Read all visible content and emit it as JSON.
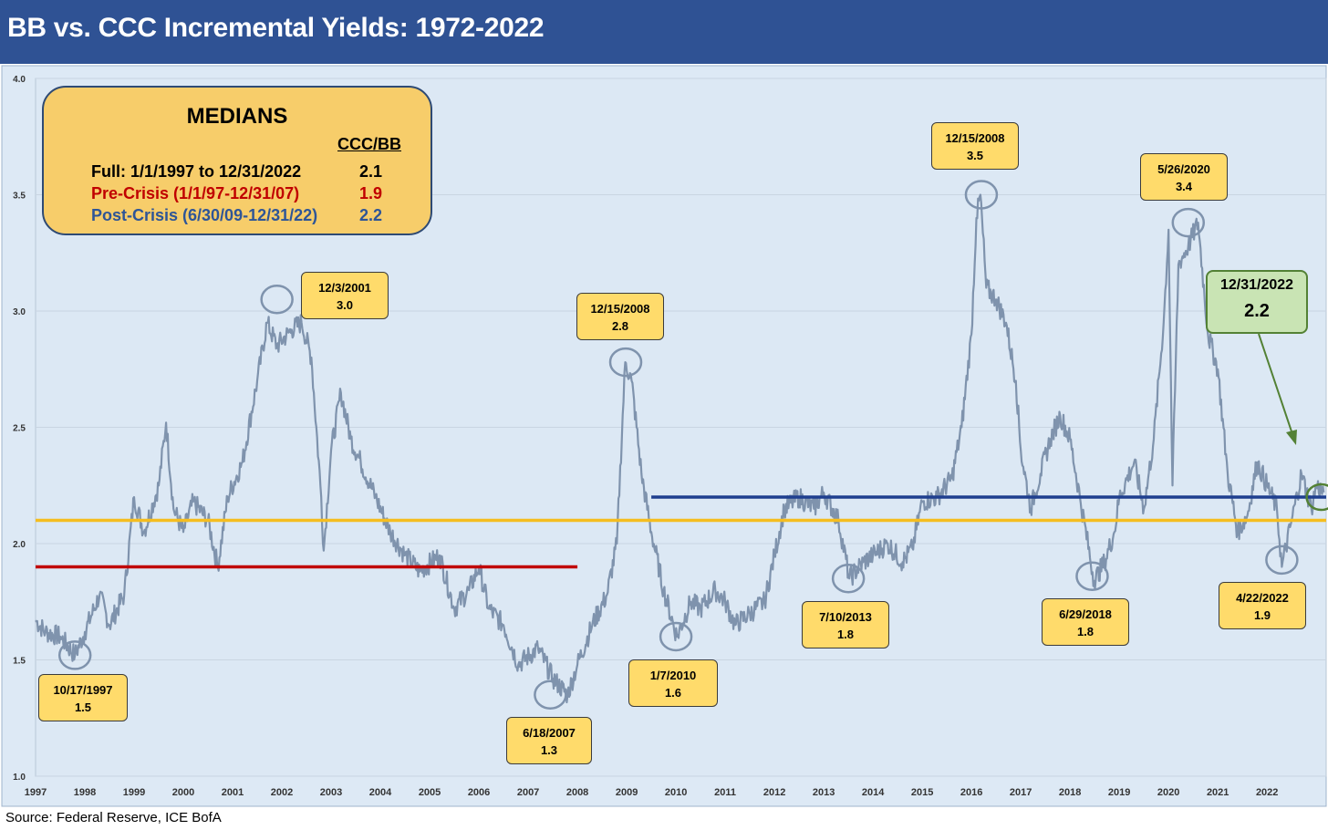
{
  "header": {
    "title": "BB vs. CCC Incremental Yields: 1972-2022"
  },
  "source": "Source: Federal Reserve, ICE BofA",
  "medians": {
    "title": "MEDIANS",
    "column_header": "CCC/BB",
    "rows": [
      {
        "label": "Full: 1/1/1997 to 12/31/2022",
        "value": "2.1",
        "color": "#000000"
      },
      {
        "label": "Pre-Crisis (1/1/97-12/31/07)",
        "value": "1.9",
        "color": "#c00000"
      },
      {
        "label": "Post-Crisis (6/30/09-12/31/22)",
        "value": "2.2",
        "color": "#2e5597"
      }
    ]
  },
  "annotations": [
    {
      "date": "10/17/1997",
      "value": "1.5"
    },
    {
      "date": "12/3/2001",
      "value": "3.0"
    },
    {
      "date": "6/18/2007",
      "value": "1.3"
    },
    {
      "date": "12/15/2008",
      "value": "2.8"
    },
    {
      "date": "1/7/2010",
      "value": "1.6"
    },
    {
      "date": "12/15/2008",
      "value": "3.5"
    },
    {
      "date": "7/10/2013",
      "value": "1.8"
    },
    {
      "date": "6/29/2018",
      "value": "1.8"
    },
    {
      "date": "5/26/2020",
      "value": "3.4"
    },
    {
      "date": "4/22/2022",
      "value": "1.9"
    }
  ],
  "last_value": {
    "date": "12/31/2022",
    "value": "2.2"
  },
  "colors": {
    "header": "#2f5294",
    "plot_bg": "#dde9f5",
    "series": "#7f93ad",
    "full_median": "#f5bd1f",
    "pre_crisis": "#c00000",
    "post_crisis": "#1f3f8f",
    "last_box": "#c9e4b4"
  },
  "chart_data": {
    "type": "line",
    "title": "BB vs. CCC Incremental Yields: 1972-2022",
    "x_ticks": [
      "1997",
      "1998",
      "1999",
      "2000",
      "2001",
      "2002",
      "2003",
      "2004",
      "2005",
      "2006",
      "2007",
      "2008",
      "2009",
      "2010",
      "2011",
      "2012",
      "2013",
      "2014",
      "2015",
      "2016",
      "2017",
      "2018",
      "2019",
      "2020",
      "2021",
      "2022"
    ],
    "y_ticks": [
      "1.0",
      "1.5",
      "2.0",
      "2.5",
      "3.0",
      "3.5",
      "4.0"
    ],
    "ylim": [
      1.0,
      4.0
    ],
    "xlim": [
      1997.0,
      2023.2
    ],
    "grid": true,
    "series": [
      {
        "values": [
          [
            1997.0,
            1.67
          ],
          [
            1997.2,
            1.62
          ],
          [
            1997.5,
            1.6
          ],
          [
            1997.8,
            1.52
          ],
          [
            1998.0,
            1.62
          ],
          [
            1998.3,
            1.78
          ],
          [
            1998.5,
            1.65
          ],
          [
            1998.8,
            1.78
          ],
          [
            1999.0,
            2.2
          ],
          [
            1999.2,
            2.05
          ],
          [
            1999.5,
            2.25
          ],
          [
            1999.65,
            2.52
          ],
          [
            1999.8,
            2.15
          ],
          [
            2000.0,
            2.05
          ],
          [
            2000.2,
            2.18
          ],
          [
            2000.5,
            2.1
          ],
          [
            2000.7,
            1.9
          ],
          [
            2000.9,
            2.2
          ],
          [
            2001.2,
            2.35
          ],
          [
            2001.5,
            2.7
          ],
          [
            2001.7,
            2.95
          ],
          [
            2001.9,
            2.85
          ],
          [
            2002.2,
            2.92
          ],
          [
            2002.4,
            2.95
          ],
          [
            2002.6,
            2.8
          ],
          [
            2002.8,
            2.2
          ],
          [
            2002.85,
            1.97
          ],
          [
            2003.0,
            2.4
          ],
          [
            2003.2,
            2.65
          ],
          [
            2003.4,
            2.45
          ],
          [
            2003.6,
            2.35
          ],
          [
            2003.9,
            2.2
          ],
          [
            2004.2,
            2.05
          ],
          [
            2004.5,
            1.95
          ],
          [
            2004.8,
            1.88
          ],
          [
            2005.2,
            1.95
          ],
          [
            2005.5,
            1.72
          ],
          [
            2005.8,
            1.8
          ],
          [
            2006.0,
            1.9
          ],
          [
            2006.2,
            1.72
          ],
          [
            2006.5,
            1.65
          ],
          [
            2006.8,
            1.48
          ],
          [
            2007.2,
            1.55
          ],
          [
            2007.5,
            1.42
          ],
          [
            2007.8,
            1.35
          ],
          [
            2008.0,
            1.48
          ],
          [
            2008.3,
            1.65
          ],
          [
            2008.6,
            1.78
          ],
          [
            2008.8,
            2.0
          ],
          [
            2008.97,
            2.78
          ],
          [
            2009.1,
            2.7
          ],
          [
            2009.3,
            2.3
          ],
          [
            2009.5,
            2.05
          ],
          [
            2009.75,
            1.8
          ],
          [
            2010.02,
            1.6
          ],
          [
            2010.3,
            1.75
          ],
          [
            2010.5,
            1.72
          ],
          [
            2010.8,
            1.8
          ],
          [
            2011.0,
            1.75
          ],
          [
            2011.2,
            1.65
          ],
          [
            2011.5,
            1.7
          ],
          [
            2011.8,
            1.75
          ],
          [
            2012.0,
            1.95
          ],
          [
            2012.2,
            2.15
          ],
          [
            2012.5,
            2.2
          ],
          [
            2012.8,
            2.15
          ],
          [
            2013.0,
            2.22
          ],
          [
            2013.3,
            2.1
          ],
          [
            2013.52,
            1.85
          ],
          [
            2013.8,
            1.92
          ],
          [
            2014.0,
            1.95
          ],
          [
            2014.3,
            2.0
          ],
          [
            2014.6,
            1.92
          ],
          [
            2014.8,
            1.98
          ],
          [
            2015.0,
            2.18
          ],
          [
            2015.3,
            2.2
          ],
          [
            2015.6,
            2.28
          ],
          [
            2015.8,
            2.5
          ],
          [
            2016.0,
            2.9
          ],
          [
            2016.1,
            3.4
          ],
          [
            2016.18,
            3.5
          ],
          [
            2016.3,
            3.1
          ],
          [
            2016.5,
            3.05
          ],
          [
            2016.7,
            2.95
          ],
          [
            2016.9,
            2.7
          ],
          [
            2017.0,
            2.4
          ],
          [
            2017.2,
            2.15
          ],
          [
            2017.4,
            2.3
          ],
          [
            2017.6,
            2.45
          ],
          [
            2017.8,
            2.55
          ],
          [
            2018.0,
            2.45
          ],
          [
            2018.2,
            2.2
          ],
          [
            2018.49,
            1.84
          ],
          [
            2018.7,
            1.92
          ],
          [
            2018.9,
            2.05
          ],
          [
            2019.0,
            2.2
          ],
          [
            2019.3,
            2.35
          ],
          [
            2019.5,
            2.15
          ],
          [
            2019.7,
            2.45
          ],
          [
            2019.9,
            2.95
          ],
          [
            2020.0,
            3.35
          ],
          [
            2020.08,
            2.25
          ],
          [
            2020.2,
            3.2
          ],
          [
            2020.4,
            3.28
          ],
          [
            2020.6,
            3.38
          ],
          [
            2020.8,
            2.9
          ],
          [
            2021.0,
            2.75
          ],
          [
            2021.2,
            2.3
          ],
          [
            2021.4,
            2.05
          ],
          [
            2021.6,
            2.12
          ],
          [
            2021.8,
            2.35
          ],
          [
            2022.0,
            2.25
          ],
          [
            2022.2,
            2.15
          ],
          [
            2022.3,
            1.9
          ],
          [
            2022.5,
            2.1
          ],
          [
            2022.7,
            2.3
          ],
          [
            2022.9,
            2.15
          ],
          [
            2023.0,
            2.25
          ],
          [
            2023.15,
            2.22
          ]
        ]
      }
    ],
    "reference_lines": [
      {
        "value": 2.1,
        "from": 1997.0,
        "to": 2023.2
      },
      {
        "value": 1.9,
        "from": 1997.0,
        "to": 2008.0
      },
      {
        "value": 2.2,
        "from": 2009.5,
        "to": 2023.2
      }
    ]
  }
}
